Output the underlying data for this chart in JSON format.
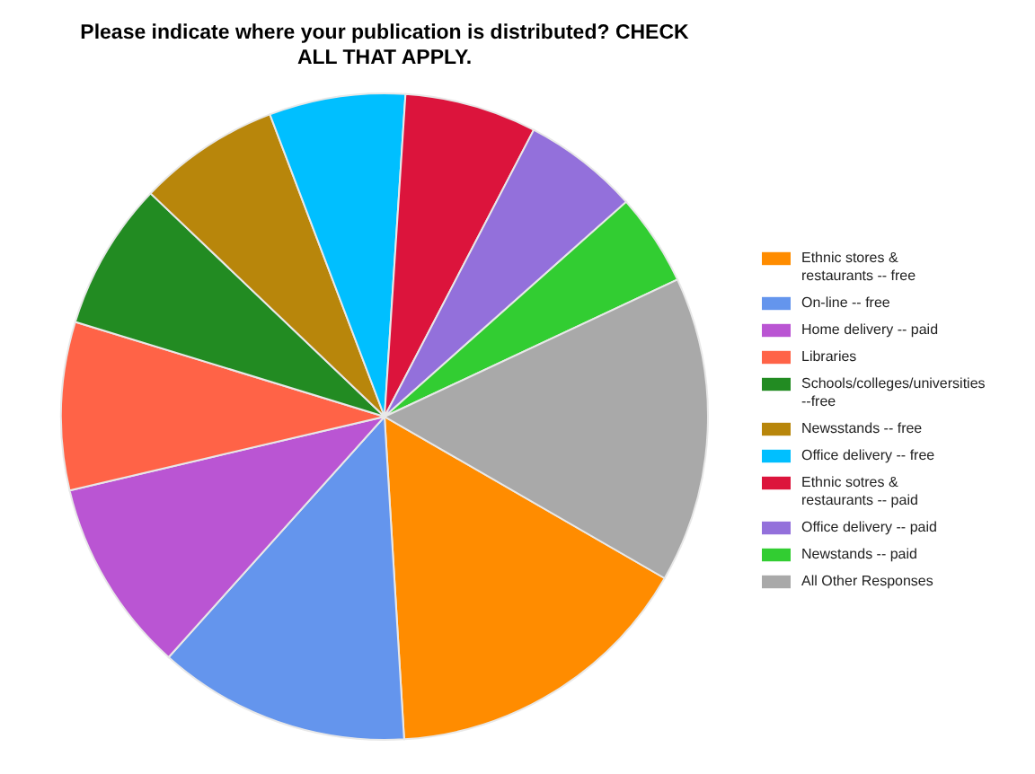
{
  "chart_data": {
    "type": "pie",
    "title": "Please indicate where your publication is distributed? CHECK ALL THAT APPLY.",
    "categories": [
      "Ethnic stores & restaurants -- free",
      "On-line -- free",
      "Home delivery -- paid",
      "Libraries",
      "Schools/colleges/universities --free",
      "Newsstands -- free",
      "Office delivery -- free",
      "Ethnic sotres & restaurants -- paid",
      "Office delivery -- paid",
      "Newstands -- paid",
      "All Other Responses"
    ],
    "values": [
      15.7,
      12.6,
      9.7,
      8.4,
      7.4,
      7.1,
      6.8,
      6.6,
      5.8,
      4.6,
      15.3
    ],
    "colors": [
      "#ff8c00",
      "#6495ed",
      "#ba55d3",
      "#ff6347",
      "#228b22",
      "#b8860b",
      "#00bfff",
      "#dc143c",
      "#9370db",
      "#32cd32",
      "#a9a9a9"
    ],
    "legend": "right"
  }
}
